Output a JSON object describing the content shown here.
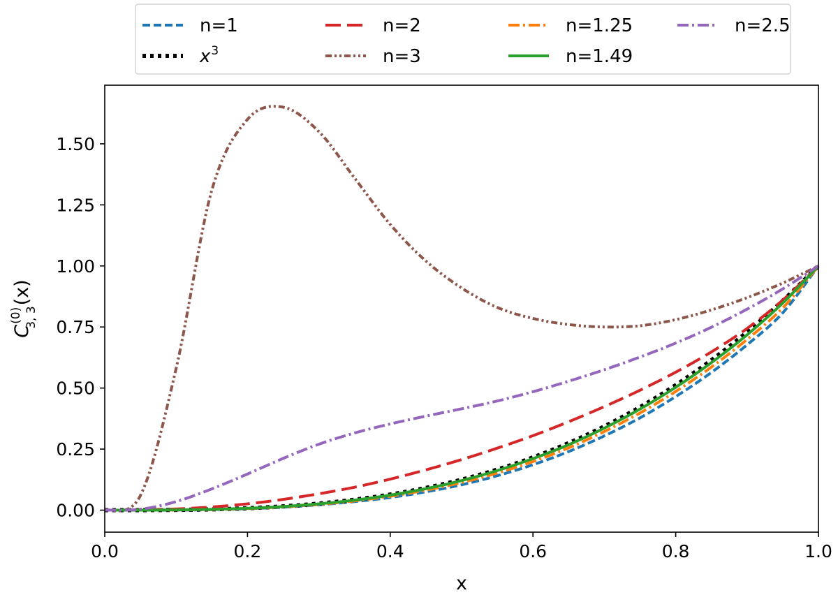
{
  "chart_data": {
    "type": "line",
    "xlabel": "x",
    "ylabel": "C",
    "ylabel_superscript": "(0)",
    "ylabel_subscript": "3, 3",
    "ylabel_suffix": "(x)",
    "xlim": [
      0.0,
      1.0
    ],
    "ylim": [
      -0.09,
      1.74
    ],
    "xticks": [
      0.0,
      0.2,
      0.4,
      0.6,
      0.8,
      1.0
    ],
    "xtick_labels": [
      "0.0",
      "0.2",
      "0.4",
      "0.6",
      "0.8",
      "1.0"
    ],
    "yticks": [
      0.0,
      0.25,
      0.5,
      0.75,
      1.0,
      1.25,
      1.5
    ],
    "ytick_labels": [
      "0.00",
      "0.25",
      "0.50",
      "0.75",
      "1.00",
      "1.25",
      "1.50"
    ],
    "grid": false,
    "legend_placement": "top-center",
    "x": [
      0.0,
      0.05,
      0.1,
      0.15,
      0.2,
      0.25,
      0.3,
      0.35,
      0.4,
      0.45,
      0.5,
      0.55,
      0.6,
      0.65,
      0.7,
      0.75,
      0.8,
      0.85,
      0.9,
      0.95,
      1.0
    ],
    "series": [
      {
        "name": "n=1",
        "color": "#1f77b4",
        "dash": "dashed",
        "values": [
          0.0,
          0.0,
          0.0,
          0.002,
          0.006,
          0.012,
          0.022,
          0.035,
          0.052,
          0.075,
          0.104,
          0.141,
          0.186,
          0.24,
          0.304,
          0.378,
          0.465,
          0.564,
          0.677,
          0.808,
          1.0
        ]
      },
      {
        "name": "x³",
        "label_base": "x",
        "label_sup": "3",
        "color": "#000000",
        "dash": "dotted",
        "values": [
          0.0,
          0.0001,
          0.001,
          0.0034,
          0.008,
          0.0156,
          0.027,
          0.0429,
          0.064,
          0.0911,
          0.125,
          0.1664,
          0.216,
          0.2746,
          0.343,
          0.4219,
          0.512,
          0.6141,
          0.729,
          0.8574,
          1.0
        ]
      },
      {
        "name": "n=2",
        "color": "#d62728",
        "dash": "longdash",
        "values": [
          0.0,
          0.001,
          0.005,
          0.013,
          0.026,
          0.044,
          0.067,
          0.094,
          0.127,
          0.165,
          0.207,
          0.254,
          0.305,
          0.362,
          0.424,
          0.491,
          0.565,
          0.648,
          0.744,
          0.86,
          1.0
        ]
      },
      {
        "name": "n=3",
        "color": "#8c564b",
        "dash": "dashdotdot",
        "values": [
          0.0,
          0.06,
          0.58,
          1.31,
          1.6,
          1.65,
          1.55,
          1.36,
          1.17,
          1.02,
          0.91,
          0.83,
          0.785,
          0.76,
          0.75,
          0.755,
          0.78,
          0.82,
          0.87,
          0.93,
          1.0
        ]
      },
      {
        "name": "n=1.25",
        "color": "#ff7f0e",
        "dash": "dashdot",
        "values": [
          0.0,
          0.0,
          0.0008,
          0.0027,
          0.0067,
          0.0135,
          0.024,
          0.038,
          0.057,
          0.082,
          0.113,
          0.152,
          0.199,
          0.255,
          0.322,
          0.398,
          0.486,
          0.586,
          0.699,
          0.828,
          1.0
        ]
      },
      {
        "name": "n=1.49",
        "color": "#2ca02c",
        "dash": "solid",
        "values": [
          0.0,
          0.0001,
          0.001,
          0.0032,
          0.0075,
          0.0147,
          0.0258,
          0.041,
          0.0615,
          0.088,
          0.121,
          0.162,
          0.211,
          0.268,
          0.336,
          0.414,
          0.503,
          0.604,
          0.718,
          0.848,
          1.0
        ]
      },
      {
        "name": "n=2.5",
        "color": "#9467bd",
        "dash": "dashdot",
        "values": [
          0.0,
          0.004,
          0.035,
          0.087,
          0.148,
          0.212,
          0.27,
          0.316,
          0.353,
          0.385,
          0.415,
          0.447,
          0.485,
          0.528,
          0.575,
          0.627,
          0.684,
          0.749,
          0.823,
          0.906,
          1.0
        ]
      }
    ]
  }
}
